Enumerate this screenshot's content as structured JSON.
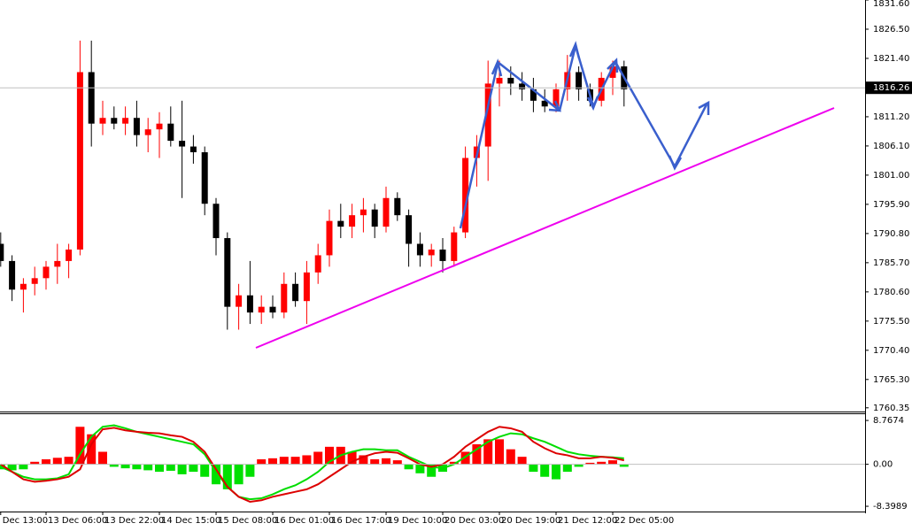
{
  "chart_data": [
    {
      "type": "candlestick",
      "categories": [
        "Dec 13:00",
        null,
        null,
        null,
        "13 Dec 06:00",
        null,
        null,
        null,
        null,
        "13 Dec 22:00",
        null,
        null,
        null,
        null,
        "14 Dec 15:00",
        null,
        null,
        null,
        null,
        "15 Dec 08:00",
        null,
        null,
        null,
        null,
        "16 Dec 01:00",
        null,
        null,
        null,
        null,
        "16 Dec 17:00",
        null,
        null,
        null,
        null,
        "19 Dec 10:00",
        null,
        null,
        null,
        null,
        "20 Dec 03:00",
        null,
        null,
        null,
        null,
        "20 Dec 19:00",
        null,
        null,
        null,
        null,
        "21 Dec 12:00",
        null,
        null,
        null,
        null,
        "22 Dec 05:00",
        null
      ],
      "open": [
        1789,
        1786,
        1781,
        1782,
        1783,
        1785,
        1786,
        1788,
        1819,
        1810,
        1811,
        1810,
        1811,
        1808,
        1809,
        1810,
        1807,
        1806,
        1805,
        1796,
        1790,
        1778,
        1780,
        1777,
        1778,
        1777,
        1782,
        1779,
        1784,
        1787,
        1793,
        1792,
        1794,
        1795,
        1792,
        1797,
        1794,
        1789,
        1787,
        1788,
        1786,
        1791,
        1804,
        1806,
        1817,
        1818,
        1817,
        1816,
        1814,
        1813,
        1816,
        1819,
        1816,
        1814,
        1818,
        1820
      ],
      "high": [
        1791,
        1787,
        1783,
        1785,
        1786,
        1789,
        1789,
        1824.5,
        1824.5,
        1814,
        1813,
        1813,
        1814,
        1811,
        1812,
        1813,
        1814,
        1808,
        1806,
        1797,
        1791,
        1782,
        1786,
        1780,
        1780,
        1784,
        1784,
        1786,
        1789,
        1795,
        1796,
        1796,
        1797,
        1796,
        1799,
        1798,
        1795,
        1791,
        1789,
        1790,
        1792,
        1806,
        1808,
        1821,
        1821,
        1820,
        1819,
        1818,
        1816,
        1817,
        1822,
        1820,
        1817,
        1819,
        1821,
        1821
      ],
      "low": [
        1785,
        1779,
        1777,
        1780,
        1781,
        1782,
        1783,
        1787,
        1806,
        1808,
        1809,
        1808,
        1806,
        1805,
        1804,
        1806,
        1797,
        1803,
        1794,
        1787,
        1774,
        1774,
        1775,
        1775,
        1776,
        1776,
        1778,
        1775,
        1782,
        1785,
        1790,
        1790,
        1791,
        1790,
        1791,
        1793,
        1785,
        1785,
        1785,
        1784,
        1785,
        1790,
        1799,
        1800,
        1813,
        1815,
        1814,
        1812,
        1812,
        1812,
        1814,
        1814,
        1813,
        1813,
        1815,
        1813
      ],
      "close": [
        1786,
        1781,
        1782,
        1783,
        1785,
        1786,
        1788,
        1819,
        1810,
        1811,
        1810,
        1811,
        1808,
        1809,
        1810,
        1807,
        1806,
        1805,
        1796,
        1790,
        1778,
        1780,
        1777,
        1778,
        1777,
        1782,
        1779,
        1784,
        1787,
        1793,
        1792,
        1794,
        1795,
        1792,
        1797,
        1794,
        1789,
        1787,
        1788,
        1786,
        1791,
        1804,
        1806,
        1817,
        1818,
        1817,
        1816,
        1814,
        1813,
        1816,
        1819,
        1816,
        1814,
        1818,
        1820,
        1816
      ],
      "up_color": "#ff0000",
      "down_color": "#000000",
      "ylim": [
        1759.7,
        1831.6
      ],
      "yticks": [
        {
          "value": 1831.6,
          "label": "1831.60"
        },
        {
          "value": 1826.5,
          "label": "1826.50"
        },
        {
          "value": 1821.4,
          "label": "1821.40"
        },
        {
          "value": 1811.2,
          "label": "1811.20"
        },
        {
          "value": 1806.1,
          "label": "1806.10"
        },
        {
          "value": 1801,
          "label": "1801.00"
        },
        {
          "value": 1795.9,
          "label": "1795.90"
        },
        {
          "value": 1790.8,
          "label": "1790.80"
        },
        {
          "value": 1785.7,
          "label": "1785.70"
        },
        {
          "value": 1780.6,
          "label": "1780.60"
        },
        {
          "value": 1775.5,
          "label": "1775.50"
        },
        {
          "value": 1770.4,
          "label": "1770.40"
        },
        {
          "value": 1765.3,
          "label": "1765.30"
        },
        1760.35
      ],
      "current_price": 1816.26
    },
    {
      "type": "macd",
      "histogram": {
        "up_color": "#ff0000",
        "down_color": "#00e000",
        "values": [
          -1,
          -1.2,
          -1,
          0.5,
          1,
          1.3,
          1.5,
          7.5,
          6,
          2.5,
          -0.5,
          -0.8,
          -1,
          -1.2,
          -1.5,
          -1.3,
          -2,
          -1.5,
          -2.5,
          -4,
          -5,
          -4,
          -2.5,
          1,
          1.2,
          1.5,
          1.5,
          1.8,
          2.5,
          3.5,
          3.5,
          2.5,
          1.8,
          1,
          1.2,
          0.8,
          -1,
          -1.8,
          -2.5,
          -1.5,
          0.5,
          2.5,
          4,
          5,
          5,
          3,
          1.5,
          -1.5,
          -2.5,
          -3,
          -1.5,
          -0.5,
          0.3,
          0.5,
          0.8,
          -0.5
        ]
      },
      "lines": [
        {
          "color": "#00dd00",
          "values": [
            -0.5,
            -1.5,
            -2.5,
            -3,
            -3,
            -2.8,
            -2,
            2,
            5.5,
            7.5,
            7.8,
            7.2,
            6.5,
            6,
            5.5,
            5,
            4.5,
            4,
            2,
            -1.5,
            -4.5,
            -6.5,
            -7,
            -6.8,
            -6,
            -5,
            -4.2,
            -3,
            -1.5,
            0.5,
            1.8,
            2.5,
            3,
            3,
            2.8,
            2.8,
            1.5,
            0.5,
            -0.5,
            -0.8,
            0,
            1.5,
            3,
            4.5,
            5.5,
            6.2,
            6,
            5.2,
            4.5,
            3.5,
            2.5,
            2,
            1.7,
            1.5,
            1.4,
            1.2
          ]
        },
        {
          "color": "#dd0000",
          "values": [
            0,
            -1.5,
            -3,
            -3.5,
            -3.3,
            -3,
            -2.5,
            -1,
            4,
            7,
            7.3,
            6.8,
            6.5,
            6.3,
            6.2,
            5.8,
            5.5,
            4.5,
            2.5,
            -1,
            -4.5,
            -6.5,
            -7.5,
            -7.2,
            -6.5,
            -6,
            -5.5,
            -5,
            -4,
            -2.5,
            -1,
            0.5,
            1.5,
            2.2,
            2.5,
            2.3,
            1.2,
            0,
            -0.5,
            0,
            1.5,
            3.5,
            5,
            6.5,
            7.5,
            7.2,
            6.5,
            4.5,
            3.2,
            2.2,
            1.8,
            1.2,
            1.2,
            1.5,
            1.3,
            0.8
          ]
        }
      ],
      "ylim": [
        -9.45,
        10.2
      ],
      "yticks": [
        8.7674,
        {
          "value": 0,
          "label": "0.00"
        },
        -8.3989
      ]
    }
  ]
}
